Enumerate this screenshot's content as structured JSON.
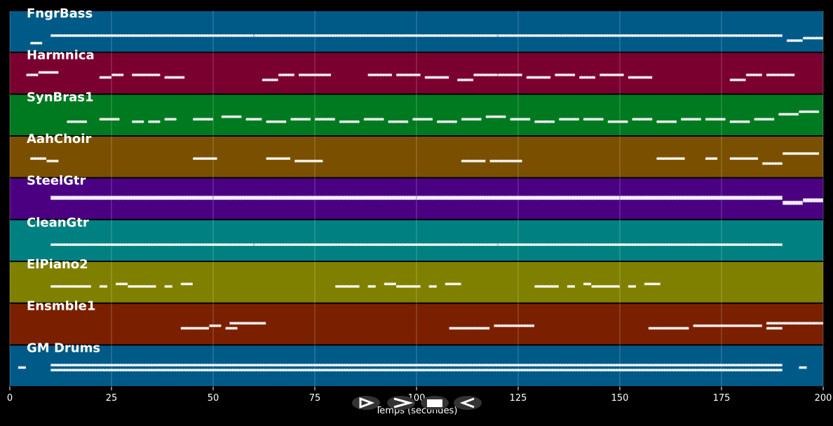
{
  "chart_data": {
    "type": "pianoroll",
    "xlabel": "Temps (secondes)",
    "xlim": [
      0,
      200
    ],
    "xticks": [
      0,
      25,
      50,
      75,
      100,
      125,
      150,
      175,
      200
    ],
    "ylim": [
      0,
      10
    ],
    "grid": true,
    "series": [
      {
        "name": "FngrBass",
        "color": "#005a87",
        "notes": [
          [
            5,
            8,
            2
          ],
          [
            10,
            60,
            5
          ],
          [
            60,
            120,
            5
          ],
          [
            120,
            190,
            5
          ],
          [
            191,
            195,
            3
          ],
          [
            195,
            200,
            4
          ]
        ]
      },
      {
        "name": "Harmnica",
        "color": "#7a0030",
        "notes": [
          [
            4,
            7,
            6
          ],
          [
            7,
            12,
            7
          ],
          [
            22,
            25,
            5
          ],
          [
            25,
            28,
            6
          ],
          [
            30,
            37,
            6
          ],
          [
            38,
            43,
            5
          ],
          [
            62,
            66,
            4
          ],
          [
            66,
            70,
            6
          ],
          [
            71,
            79,
            6
          ],
          [
            88,
            94,
            6
          ],
          [
            95,
            101,
            6
          ],
          [
            102,
            108,
            5
          ],
          [
            110,
            114,
            4
          ],
          [
            114,
            120,
            6
          ],
          [
            120,
            126,
            6
          ],
          [
            127,
            133,
            5
          ],
          [
            134,
            139,
            6
          ],
          [
            140,
            144,
            5
          ],
          [
            145,
            151,
            6
          ],
          [
            152,
            158,
            5
          ],
          [
            177,
            181,
            4
          ],
          [
            181,
            185,
            6
          ],
          [
            186,
            193,
            6
          ]
        ]
      },
      {
        "name": "SynBras1",
        "color": "#007a20",
        "notes": [
          [
            14,
            19,
            4
          ],
          [
            22,
            27,
            5
          ],
          [
            30,
            33,
            4
          ],
          [
            34,
            37,
            4
          ],
          [
            38,
            41,
            5
          ],
          [
            45,
            50,
            5
          ],
          [
            52,
            57,
            6
          ],
          [
            58,
            62,
            5
          ],
          [
            63,
            68,
            4
          ],
          [
            69,
            74,
            5
          ],
          [
            75,
            80,
            5
          ],
          [
            81,
            86,
            4
          ],
          [
            87,
            92,
            5
          ],
          [
            93,
            98,
            4
          ],
          [
            99,
            104,
            5
          ],
          [
            105,
            110,
            4
          ],
          [
            111,
            116,
            5
          ],
          [
            117,
            122,
            6
          ],
          [
            123,
            128,
            5
          ],
          [
            129,
            134,
            4
          ],
          [
            135,
            140,
            5
          ],
          [
            141,
            146,
            5
          ],
          [
            147,
            152,
            4
          ],
          [
            153,
            158,
            5
          ],
          [
            159,
            164,
            4
          ],
          [
            165,
            170,
            5
          ],
          [
            171,
            176,
            5
          ],
          [
            177,
            182,
            4
          ],
          [
            183,
            188,
            5
          ],
          [
            189,
            194,
            7
          ],
          [
            194,
            199,
            8
          ]
        ]
      },
      {
        "name": "AahChoir",
        "color": "#7a5000",
        "notes": [
          [
            5,
            9,
            6
          ],
          [
            9,
            12,
            5
          ],
          [
            45,
            51,
            6
          ],
          [
            63,
            69,
            6
          ],
          [
            70,
            77,
            5
          ],
          [
            111,
            117,
            5
          ],
          [
            118,
            126,
            5
          ],
          [
            159,
            166,
            6
          ],
          [
            171,
            174,
            6
          ],
          [
            177,
            184,
            6
          ],
          [
            185,
            190,
            4
          ],
          [
            190,
            199,
            8
          ]
        ]
      },
      {
        "name": "SteelGtr",
        "color": "#4b0082",
        "notes": [
          [
            10,
            50,
            7
          ],
          [
            50,
            100,
            7
          ],
          [
            100,
            150,
            7
          ],
          [
            150,
            190,
            7
          ],
          [
            190,
            195,
            5
          ],
          [
            195,
            200,
            6
          ]
        ]
      },
      {
        "name": "CleanGtr",
        "color": "#008080",
        "notes": [
          [
            10,
            60,
            5
          ],
          [
            60,
            120,
            5
          ],
          [
            120,
            190,
            5
          ]
        ]
      },
      {
        "name": "ElPiano2",
        "color": "#808000",
        "notes": [
          [
            10,
            20,
            5
          ],
          [
            22,
            24,
            5
          ],
          [
            26,
            29,
            6
          ],
          [
            29,
            36,
            5
          ],
          [
            38,
            40,
            5
          ],
          [
            42,
            45,
            6
          ],
          [
            80,
            86,
            5
          ],
          [
            88,
            90,
            5
          ],
          [
            92,
            95,
            6
          ],
          [
            95,
            101,
            5
          ],
          [
            103,
            105,
            5
          ],
          [
            107,
            111,
            6
          ],
          [
            129,
            135,
            5
          ],
          [
            137,
            139,
            5
          ],
          [
            141,
            143,
            6
          ],
          [
            143,
            150,
            5
          ],
          [
            152,
            154,
            5
          ],
          [
            156,
            160,
            6
          ]
        ]
      },
      {
        "name": "Ensmble1",
        "color": "#7a2000",
        "notes": [
          [
            42,
            49,
            5
          ],
          [
            49,
            52,
            6
          ],
          [
            53,
            56,
            5
          ],
          [
            54,
            63,
            7
          ],
          [
            108,
            118,
            5
          ],
          [
            119,
            129,
            6
          ],
          [
            157,
            167,
            5
          ],
          [
            168,
            185,
            6
          ],
          [
            186,
            190,
            5
          ],
          [
            186,
            200,
            7
          ]
        ]
      },
      {
        "name": "GM Drums",
        "color": "#005a87",
        "notes": [
          [
            2,
            4,
            6
          ],
          [
            10,
            190,
            5
          ],
          [
            10,
            190,
            7
          ],
          [
            194,
            196,
            6
          ]
        ]
      }
    ]
  }
}
